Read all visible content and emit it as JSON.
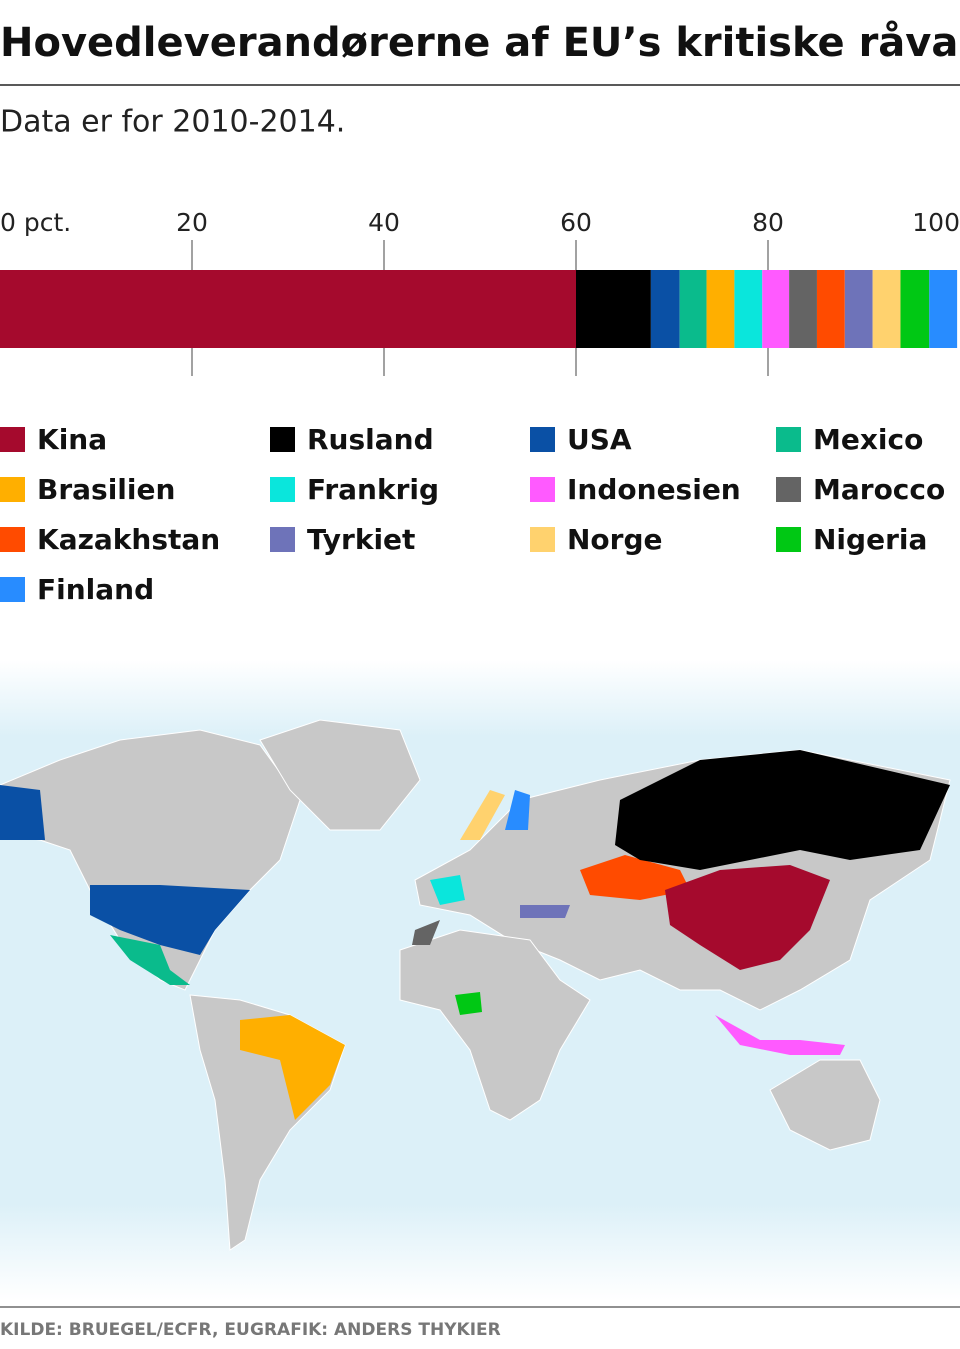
{
  "chart_data": {
    "type": "stacked-bar",
    "title": "Hovedleverandørerne af EU’s kritiske råvarer",
    "subtitle": "Data er for 2010-2014.",
    "source": "KILDE: BRUEGEL/ECFR, EU",
    "credit": "GRAFIK: ANDERS THYKIER",
    "xlim": [
      0,
      100
    ],
    "xticks": [
      {
        "value": 0,
        "label": "0 pct."
      },
      20,
      40,
      60,
      80,
      100
    ],
    "grid": true,
    "series": [
      {
        "name": "Kina",
        "color": "#a50a2d",
        "values": [
          60
        ]
      },
      {
        "name": "Rusland",
        "color": "#000000",
        "values": [
          7.8
        ]
      },
      {
        "name": "USA",
        "color": "#0a50a5",
        "values": [
          3
        ]
      },
      {
        "name": "Mexico",
        "color": "#0abb8c",
        "values": [
          2.8
        ]
      },
      {
        "name": "Brasilien",
        "color": "#ffaf00",
        "values": [
          2.9
        ]
      },
      {
        "name": "Frankrig",
        "color": "#0ae6dc",
        "values": [
          2.9
        ]
      },
      {
        "name": "Indonesien",
        "color": "#ff5aff",
        "values": [
          2.8
        ]
      },
      {
        "name": "Marocco",
        "color": "#646464",
        "values": [
          2.9
        ]
      },
      {
        "name": "Kazakhstan",
        "color": "#ff4b00",
        "values": [
          2.9
        ]
      },
      {
        "name": "Tyrkiet",
        "color": "#6e73b9",
        "values": [
          2.9
        ]
      },
      {
        "name": "Norge",
        "color": "#ffd26e",
        "values": [
          2.9
        ]
      },
      {
        "name": "Nigeria",
        "color": "#00c814",
        "values": [
          3
        ]
      },
      {
        "name": "Finland",
        "color": "#288cff",
        "values": [
          2.9
        ]
      }
    ]
  }
}
